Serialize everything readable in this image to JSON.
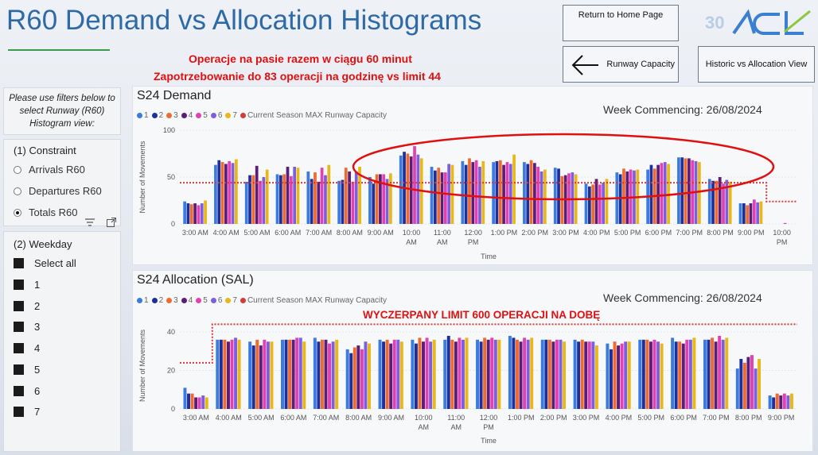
{
  "header": {
    "title": "R60 Demand vs Allocation Histograms",
    "home_button": "Return to Home Page",
    "runway_capacity_button": "Runway Capacity",
    "historic_button": "Historic vs Allocation View",
    "logo_text": "30 ACL"
  },
  "colors": {
    "title": "#2e6aa6",
    "annotation": "#e01010",
    "series": [
      "#3a7be0",
      "#1d2f9c",
      "#ee6a2e",
      "#5a1e78",
      "#e241b3",
      "#7c5ee0",
      "#e8b718"
    ],
    "capacity": "#d33c3c"
  },
  "annotations": {
    "line1": "Operacje na pasie razem w ciągu 60 minut",
    "line2": "Zapotrzebowanie do 83 operacji na godzinę vs limit 44",
    "allocation_note": "WYCZERPANY LIMIT 600 OPERACJI NA DOBĘ"
  },
  "filters": {
    "help": "Please use filters below to select Runway (R60) Histogram view:",
    "constraint": {
      "heading": "(1) Constraint",
      "options": [
        "Arrivals R60",
        "Departures R60",
        "Totals R60"
      ],
      "selected": "Totals R60"
    },
    "weekday": {
      "heading": "(2) Weekday",
      "items": [
        "Select all",
        "1",
        "2",
        "3",
        "4",
        "5",
        "6",
        "7"
      ]
    }
  },
  "legend": {
    "series": [
      "1",
      "2",
      "3",
      "4",
      "5",
      "6",
      "7"
    ],
    "capacity_label": "Current Season MAX Runway Capacity"
  },
  "chart_data": [
    {
      "id": "demand",
      "type": "bar",
      "title": "S24 Demand",
      "week_label": "Week Commencing: 26/08/2024",
      "xlabel": "Time",
      "ylabel": "Number of Movements",
      "ylim": [
        0,
        100
      ],
      "yticks": [
        0,
        50,
        100
      ],
      "categories": [
        "3:00 AM",
        "4:00 AM",
        "5:00 AM",
        "6:00 AM",
        "7:00 AM",
        "8:00 AM",
        "9:00 AM",
        "10:00 AM",
        "11:00 AM",
        "12:00 PM",
        "1:00 PM",
        "2:00 PM",
        "3:00 PM",
        "4:00 PM",
        "5:00 PM",
        "6:00 PM",
        "7:00 PM",
        "8:00 PM",
        "9:00 PM",
        "10:00 PM"
      ],
      "series": [
        {
          "name": "1",
          "values": [
            24,
            63,
            45,
            53,
            56,
            46,
            50,
            73,
            61,
            67,
            66,
            66,
            60,
            43,
            55,
            58,
            71,
            48,
            22,
            0
          ]
        },
        {
          "name": "2",
          "values": [
            22,
            68,
            52,
            52,
            48,
            47,
            43,
            77,
            57,
            63,
            67,
            64,
            59,
            40,
            53,
            63,
            71,
            46,
            22,
            0
          ]
        },
        {
          "name": "3",
          "values": [
            21,
            66,
            52,
            53,
            55,
            60,
            53,
            75,
            60,
            70,
            68,
            68,
            51,
            42,
            59,
            59,
            70,
            46,
            20,
            0
          ]
        },
        {
          "name": "4",
          "values": [
            22,
            64,
            62,
            61,
            45,
            56,
            53,
            72,
            55,
            66,
            63,
            65,
            52,
            48,
            56,
            63,
            70,
            50,
            22,
            0
          ]
        },
        {
          "name": "5",
          "values": [
            20,
            67,
            46,
            51,
            60,
            45,
            53,
            83,
            55,
            68,
            66,
            61,
            54,
            42,
            58,
            65,
            68,
            43,
            26,
            1
          ]
        },
        {
          "name": "6",
          "values": [
            22,
            65,
            50,
            61,
            52,
            56,
            48,
            74,
            64,
            61,
            64,
            56,
            55,
            44,
            57,
            66,
            67,
            47,
            23,
            0
          ]
        },
        {
          "name": "7",
          "values": [
            25,
            69,
            58,
            60,
            63,
            61,
            54,
            70,
            63,
            67,
            74,
            58,
            53,
            48,
            58,
            64,
            66,
            45,
            24,
            0
          ]
        }
      ],
      "capacity": [
        44,
        44,
        44,
        44,
        44,
        44,
        44,
        44,
        44,
        44,
        44,
        44,
        44,
        44,
        44,
        44,
        44,
        44,
        44,
        24
      ]
    },
    {
      "id": "allocation",
      "type": "bar",
      "title": "S24 Allocation (SAL)",
      "week_label": "Week Commencing: 26/08/2024",
      "xlabel": "Time",
      "ylabel": "Number of Movements",
      "ylim": [
        0,
        45
      ],
      "yticks": [
        0,
        20,
        40
      ],
      "categories": [
        "3:00 AM",
        "4:00 AM",
        "5:00 AM",
        "6:00 AM",
        "7:00 AM",
        "8:00 AM",
        "9:00 AM",
        "10:00 AM",
        "11:00 AM",
        "12:00 PM",
        "1:00 PM",
        "2:00 PM",
        "3:00 PM",
        "4:00 PM",
        "5:00 PM",
        "6:00 PM",
        "7:00 PM",
        "8:00 PM",
        "9:00 PM"
      ],
      "series": [
        {
          "name": "1",
          "values": [
            11,
            36,
            35,
            36,
            37,
            31,
            36,
            36,
            36,
            36,
            38,
            36,
            36,
            34,
            36,
            37,
            36,
            21,
            7
          ]
        },
        {
          "name": "2",
          "values": [
            8,
            36,
            33,
            36,
            35,
            29,
            35,
            34,
            38,
            35,
            37,
            36,
            35,
            31,
            36,
            35,
            36,
            26,
            6
          ]
        },
        {
          "name": "3",
          "values": [
            8,
            36,
            36,
            36,
            36,
            32,
            36,
            37,
            36,
            37,
            36,
            36,
            36,
            35,
            36,
            35,
            37,
            24,
            8
          ]
        },
        {
          "name": "4",
          "values": [
            6,
            35,
            33,
            36,
            36,
            33,
            34,
            35,
            35,
            36,
            35,
            35,
            35,
            33,
            35,
            34,
            35,
            27,
            7
          ]
        },
        {
          "name": "5",
          "values": [
            6,
            36,
            36,
            37,
            34,
            31,
            36,
            37,
            37,
            37,
            37,
            36,
            35,
            34,
            36,
            36,
            38,
            28,
            8
          ]
        },
        {
          "name": "6",
          "values": [
            7,
            37,
            35,
            37,
            35,
            35,
            36,
            35,
            36,
            36,
            36,
            36,
            35,
            35,
            35,
            36,
            36,
            21,
            7
          ]
        },
        {
          "name": "7",
          "values": [
            6,
            36,
            35,
            35,
            36,
            34,
            35,
            36,
            37,
            36,
            37,
            35,
            33,
            35,
            34,
            37,
            37,
            26,
            8
          ]
        }
      ],
      "capacity": [
        24,
        44,
        44,
        44,
        44,
        44,
        44,
        44,
        44,
        44,
        44,
        44,
        44,
        44,
        44,
        44,
        44,
        44,
        44
      ]
    }
  ]
}
